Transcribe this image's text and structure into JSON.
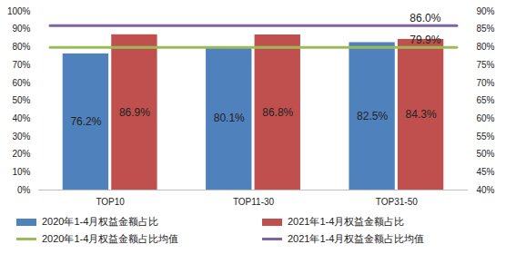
{
  "chart_data": {
    "type": "bar",
    "categories": [
      "TOP10",
      "TOP11-30",
      "TOP31-50"
    ],
    "series": [
      {
        "name": "2020年1-4月权益金额占比",
        "type": "bar",
        "color": "#4f81bd",
        "values": [
          76.2,
          80.1,
          82.5
        ],
        "value_labels": [
          "76.2%",
          "80.1%",
          "82.5%"
        ]
      },
      {
        "name": "2021年1-4月权益金额占比",
        "type": "bar",
        "color": "#c0504d",
        "values": [
          86.9,
          86.8,
          84.3
        ],
        "value_labels": [
          "86.9%",
          "86.8%",
          "84.3%"
        ]
      },
      {
        "name": "2020年1-4月权益金额占比均值",
        "type": "line",
        "axis": "y2",
        "color": "#9bbb59",
        "values": [
          79.9,
          79.9,
          79.9
        ],
        "value_labels": [
          null,
          null,
          "79.9%"
        ]
      },
      {
        "name": "2021年1-4月权益金额占比均值",
        "type": "line",
        "axis": "y2",
        "color": "#8064a2",
        "values": [
          86.0,
          86.0,
          86.0
        ],
        "value_labels": [
          null,
          null,
          "86.0%"
        ]
      }
    ],
    "ylim": [
      0,
      100
    ],
    "yticks": [
      {
        "value": 0,
        "label": "0%"
      },
      {
        "value": 10,
        "label": "10%"
      },
      {
        "value": 20,
        "label": "20%"
      },
      {
        "value": 30,
        "label": "30%"
      },
      {
        "value": 40,
        "label": "40%"
      },
      {
        "value": 50,
        "label": "50%"
      },
      {
        "value": 60,
        "label": "60%"
      },
      {
        "value": 70,
        "label": "70%"
      },
      {
        "value": 80,
        "label": "80%"
      },
      {
        "value": 90,
        "label": "90%"
      },
      {
        "value": 100,
        "label": "100%"
      }
    ],
    "y2lim": [
      40,
      90
    ],
    "y2ticks": [
      {
        "value": 40,
        "label": "40%"
      },
      {
        "value": 45,
        "label": "45%"
      },
      {
        "value": 50,
        "label": "50%"
      },
      {
        "value": 55,
        "label": "55%"
      },
      {
        "value": 60,
        "label": "60%"
      },
      {
        "value": 65,
        "label": "65%"
      },
      {
        "value": 70,
        "label": "70%"
      },
      {
        "value": 75,
        "label": "75%"
      },
      {
        "value": 80,
        "label": "80%"
      },
      {
        "value": 85,
        "label": "85%"
      },
      {
        "value": 90,
        "label": "90%"
      }
    ],
    "data_labels": true,
    "grid": false,
    "legend": "bottom"
  }
}
